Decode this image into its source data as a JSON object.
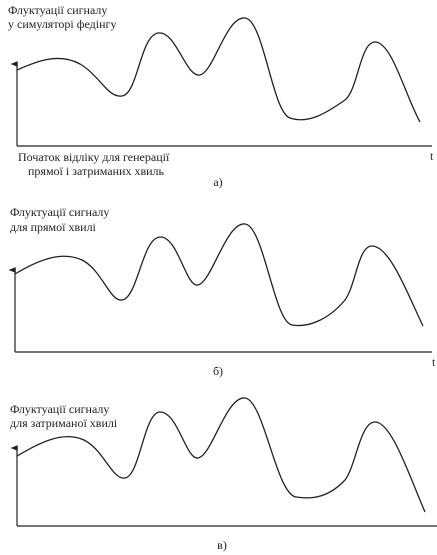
{
  "panels": [
    {
      "title": [
        "Флуктуації сигналу",
        "у симуляторі федінгу"
      ],
      "axis_label": "t",
      "note": [
        "Початок відліку для генерації",
        "прямої і затриманих хвиль"
      ],
      "caption": "а)"
    },
    {
      "title": [
        "Флуктуації сигналу",
        "для прямої хвилі"
      ],
      "axis_label": "t",
      "caption": "б)"
    },
    {
      "title": [
        "Флуктуації сигналу",
        "для затриманої хвилі"
      ],
      "caption": "в)"
    }
  ]
}
